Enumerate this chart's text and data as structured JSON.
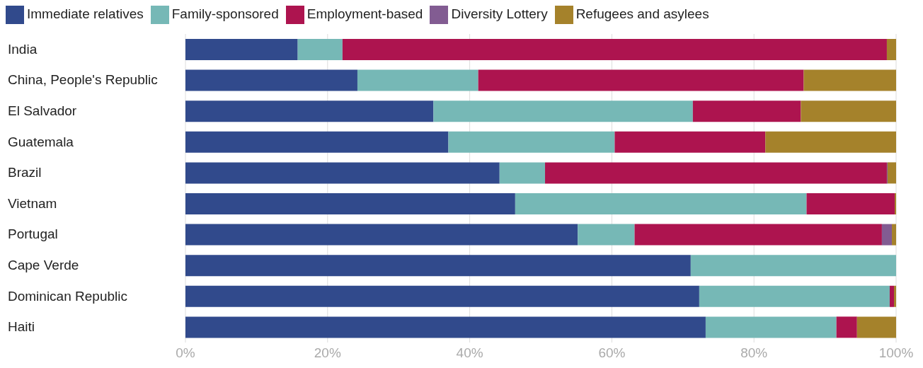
{
  "chart_data": {
    "type": "bar",
    "orientation": "horizontal",
    "stacked": true,
    "categories": [
      "India",
      "China, People's Republic",
      "El Salvador",
      "Guatemala",
      "Brazil",
      "Vietnam",
      "Portugal",
      "Cape Verde",
      "Dominican Republic",
      "Haiti"
    ],
    "series": [
      {
        "name": "Immediate relatives",
        "color": "#314a8c",
        "values": [
          15.8,
          24.2,
          34.9,
          37.0,
          44.2,
          46.4,
          55.2,
          71.1,
          72.3,
          73.2
        ]
      },
      {
        "name": "Family-sponsored",
        "color": "#76b8b6",
        "values": [
          6.3,
          17.0,
          36.5,
          23.4,
          6.4,
          41.0,
          8.0,
          28.9,
          26.8,
          18.4
        ]
      },
      {
        "name": "Employment-based",
        "color": "#ad144f",
        "values": [
          76.6,
          45.8,
          15.2,
          21.2,
          48.1,
          12.4,
          34.8,
          0,
          0.6,
          2.9
        ]
      },
      {
        "name": "Diversity Lottery",
        "color": "#825c92",
        "values": [
          0,
          0,
          0,
          0,
          0.1,
          0,
          1.4,
          0,
          0,
          0
        ]
      },
      {
        "name": "Refugees and asylees",
        "color": "#a5822b",
        "values": [
          1.3,
          13.0,
          13.4,
          18.4,
          1.2,
          0.2,
          0.6,
          0,
          0.3,
          5.5
        ]
      }
    ],
    "xlim": [
      0,
      100
    ],
    "xticks": [
      {
        "value": 0,
        "label": "0%"
      },
      {
        "value": 20,
        "label": "20%"
      },
      {
        "value": 40,
        "label": "40%"
      },
      {
        "value": 60,
        "label": "60%"
      },
      {
        "value": 80,
        "label": "80%"
      },
      {
        "value": 100,
        "label": "100%"
      }
    ],
    "grid": "x",
    "legend": "top left"
  }
}
